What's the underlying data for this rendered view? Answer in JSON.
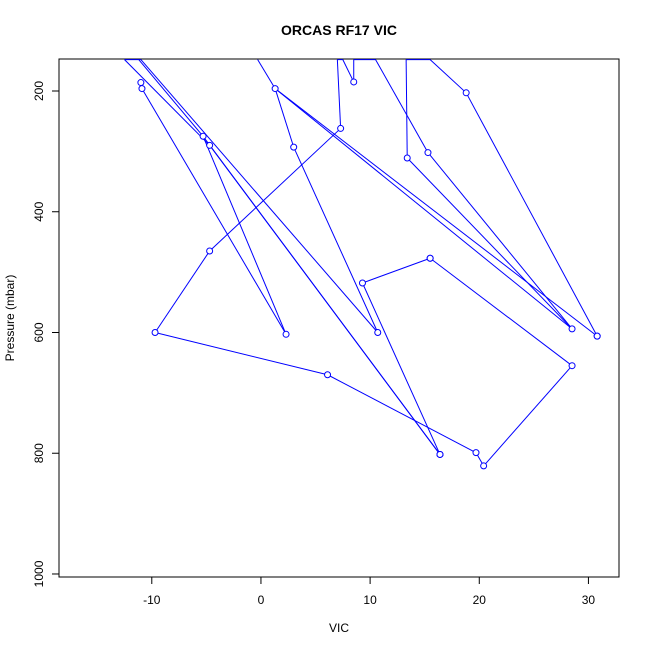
{
  "chart_data": {
    "type": "line",
    "title": "ORCAS RF17 VIC",
    "xlabel": "VIC",
    "ylabel": "Pressure (mbar)",
    "xlim": [
      -18.5,
      32.8
    ],
    "ylim": [
      1005,
      147
    ],
    "y_reversed": true,
    "x_ticks": [
      -10,
      0,
      10,
      20,
      30
    ],
    "y_ticks": [
      200,
      400,
      600,
      800,
      1000
    ],
    "grid": false,
    "line_color": "#0000ff",
    "series": [
      {
        "marker": "open-circle",
        "points": [
          {
            "x": 30.8,
            "y": 606
          },
          {
            "x": 18.8,
            "y": 203
          },
          {
            "x": 15.5,
            "y": 148
          },
          {
            "x": 13.3,
            "y": 148
          },
          {
            "x": 13.4,
            "y": 311
          },
          {
            "x": 28.5,
            "y": 594
          },
          {
            "x": 15.3,
            "y": 302
          },
          {
            "x": 10.5,
            "y": 148
          },
          {
            "x": 8.5,
            "y": 148
          },
          {
            "x": 8.5,
            "y": 185
          },
          {
            "x": 7.5,
            "y": 148
          },
          {
            "x": 7.0,
            "y": 148
          },
          {
            "x": 7.3,
            "y": 262
          },
          {
            "x": -4.7,
            "y": 465
          },
          {
            "x": -9.7,
            "y": 600
          },
          {
            "x": 6.1,
            "y": 670
          },
          {
            "x": 19.7,
            "y": 799
          },
          {
            "x": 20.4,
            "y": 821
          },
          {
            "x": 28.5,
            "y": 655
          },
          {
            "x": 15.5,
            "y": 477
          },
          {
            "x": 15.5,
            "y": 477
          },
          {
            "x": 9.3,
            "y": 518
          },
          {
            "x": 16.4,
            "y": 802
          },
          {
            "x": -4.7,
            "y": 290
          },
          {
            "x": -12.5,
            "y": 148
          },
          {
            "x": -11.0,
            "y": 148
          },
          {
            "x": 10.7,
            "y": 600
          },
          {
            "x": 3.0,
            "y": 293
          },
          {
            "x": 1.3,
            "y": 196
          },
          {
            "x": 30.8,
            "y": 606
          }
        ]
      },
      {
        "marker": "open-circle",
        "points": [
          {
            "x": -11.0,
            "y": 186
          },
          {
            "x": -10.9,
            "y": 196
          },
          {
            "x": 2.3,
            "y": 603
          },
          {
            "x": -5.3,
            "y": 275
          },
          {
            "x": 16.4,
            "y": 802
          },
          {
            "x": 16.4,
            "y": 802
          }
        ]
      },
      {
        "marker": "none",
        "points": [
          {
            "x": -11.2,
            "y": 148
          },
          {
            "x": -5.3,
            "y": 275
          }
        ]
      },
      {
        "marker": "none",
        "points": [
          {
            "x": -0.3,
            "y": 148
          },
          {
            "x": 1.3,
            "y": 196
          }
        ]
      },
      {
        "marker": "none",
        "points": [
          {
            "x": 1.3,
            "y": 196
          },
          {
            "x": 28.5,
            "y": 594
          }
        ]
      }
    ]
  }
}
